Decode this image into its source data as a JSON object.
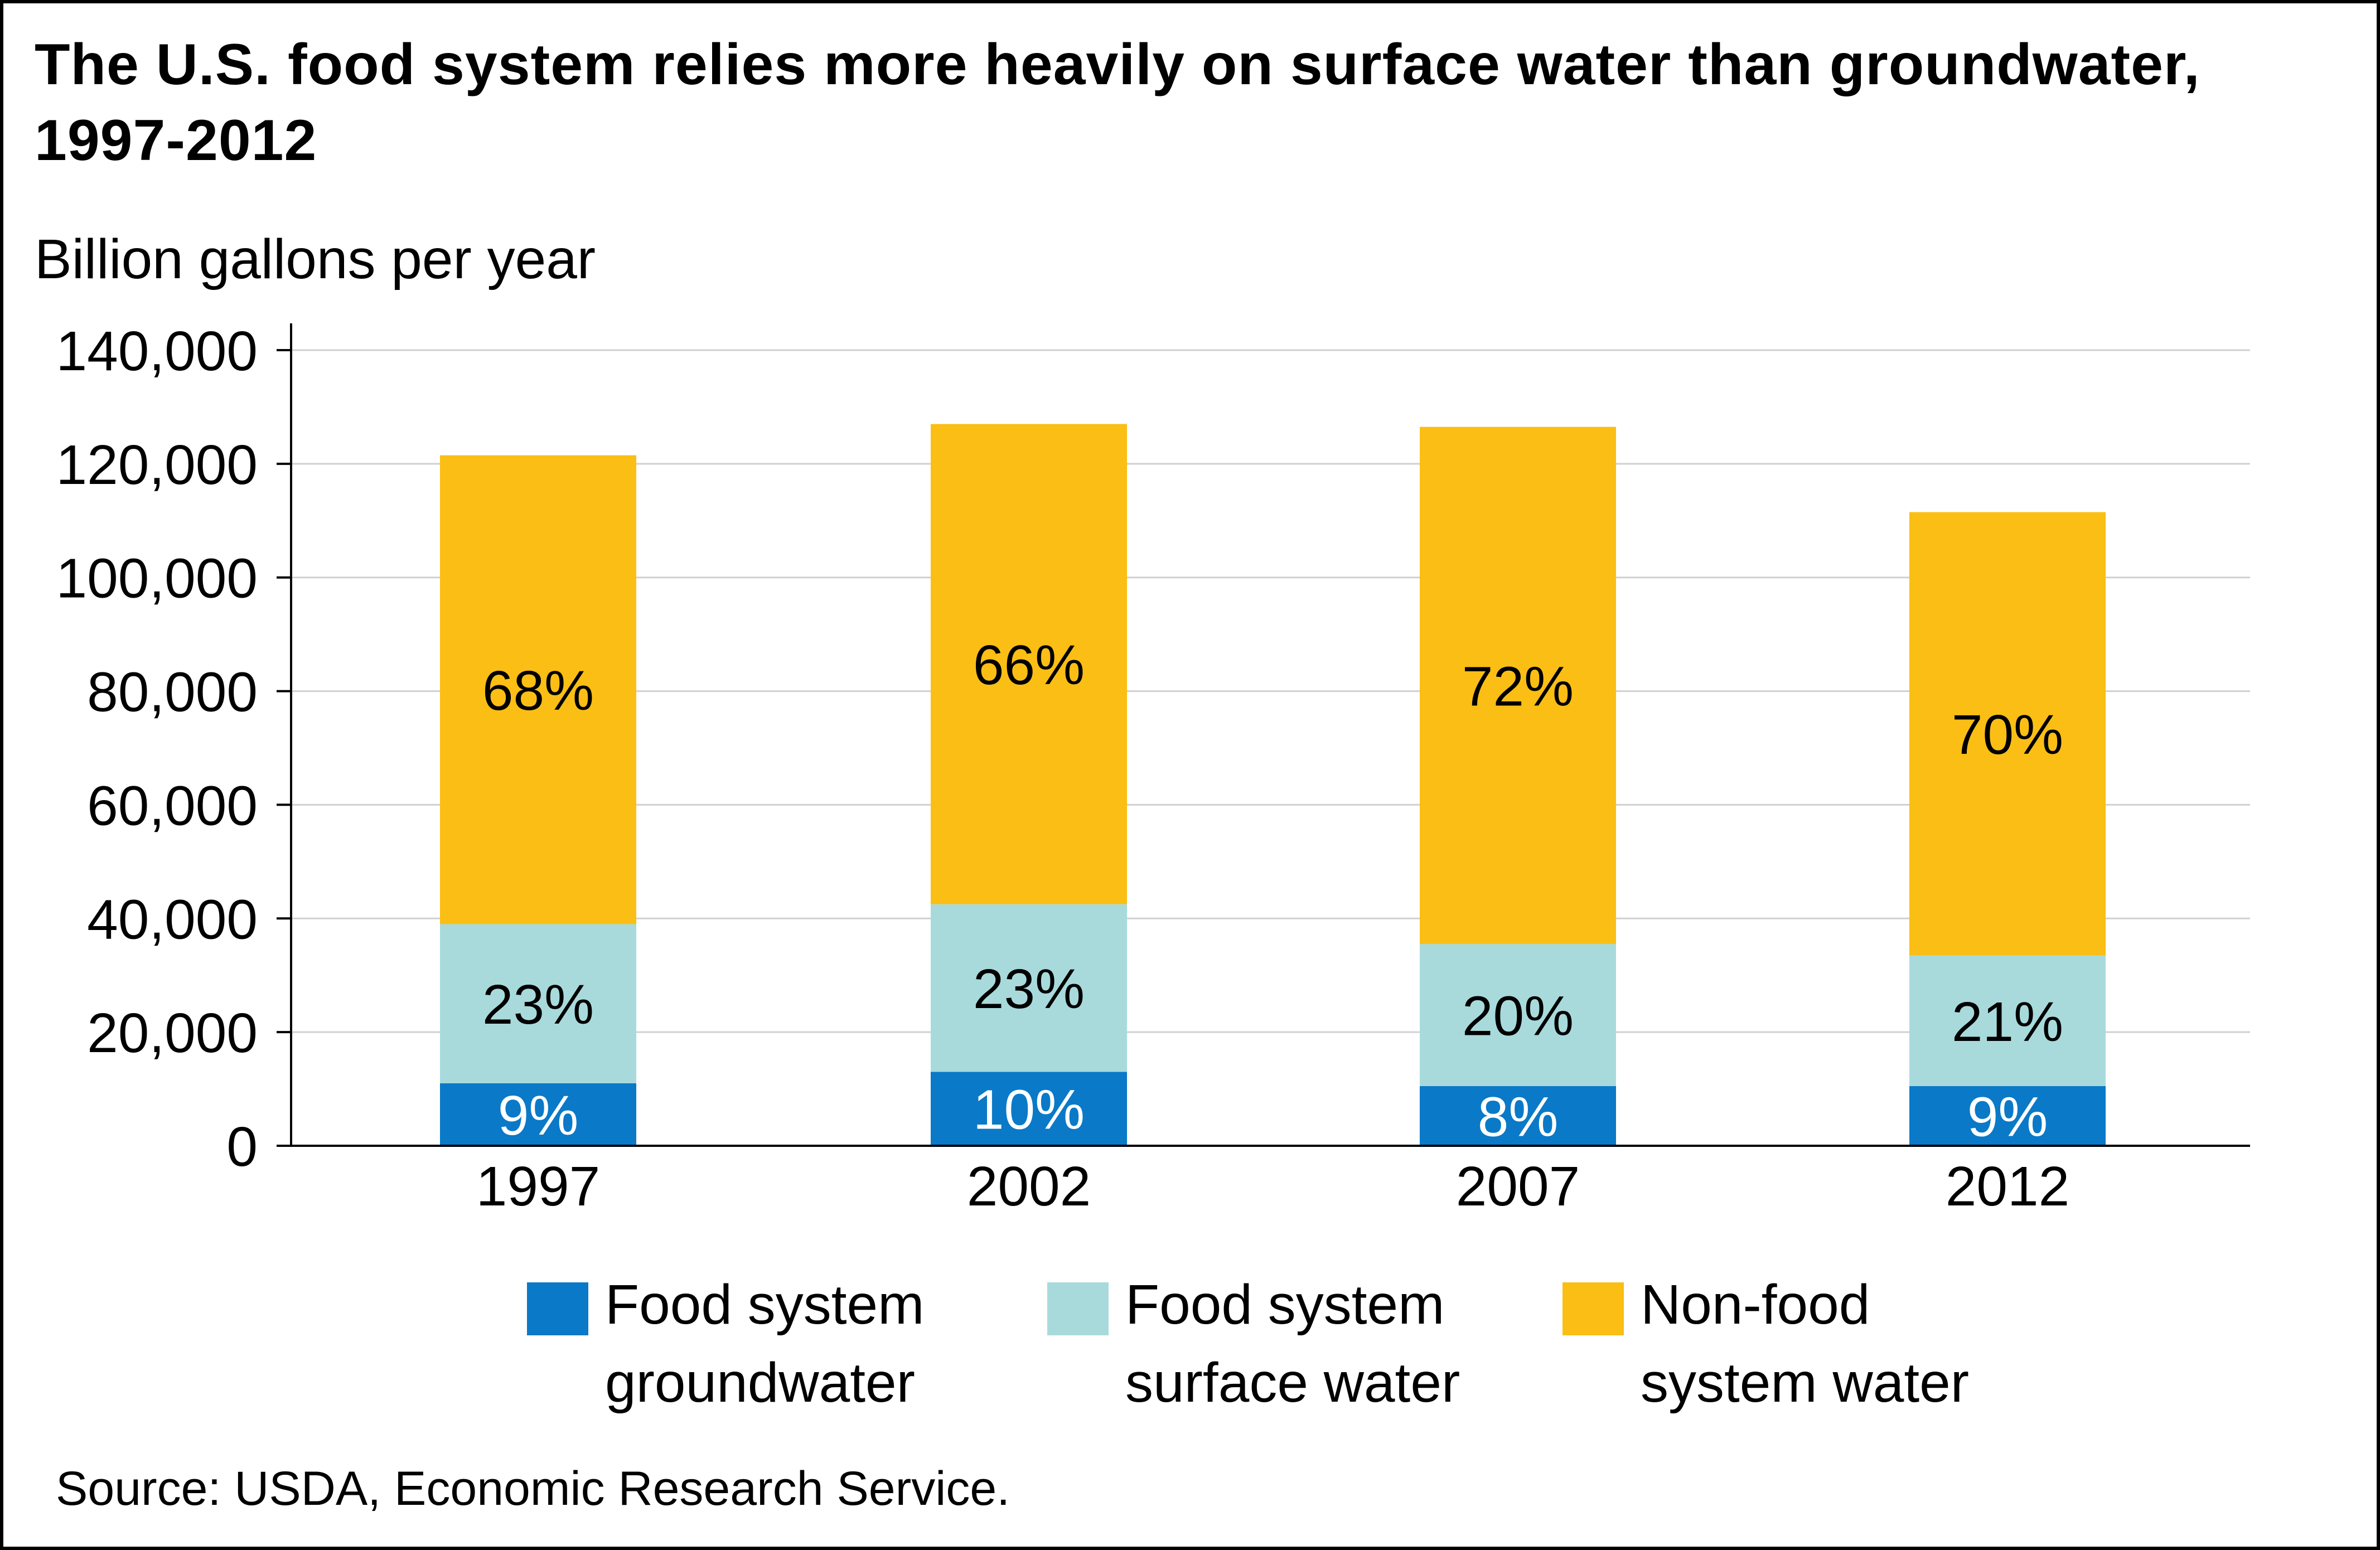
{
  "title": "The U.S. food system relies more heavily on surface water than groundwater, 1997-2012",
  "source": "Source: USDA, Economic Research Service.",
  "chart_data": {
    "type": "bar",
    "stacked": true,
    "title": "The U.S. food system relies more heavily on surface water than groundwater, 1997-2012",
    "ylabel": "Billion gallons per year",
    "xlabel": "",
    "categories": [
      "1997",
      "2002",
      "2007",
      "2012"
    ],
    "ylim": [
      0,
      140000
    ],
    "yticks": [
      0,
      20000,
      40000,
      60000,
      80000,
      100000,
      120000,
      140000
    ],
    "ytick_labels": [
      "0",
      "20,000",
      "40,000",
      "60,000",
      "80,000",
      "100,000",
      "120,000",
      "140,000"
    ],
    "grid": true,
    "legend_position": "bottom",
    "series": [
      {
        "name": "Food system groundwater",
        "color": "#0a79c8",
        "label_color": "#ffffff",
        "values": [
          11000,
          13000,
          10500,
          10500
        ],
        "labels": [
          "9%",
          "10%",
          "8%",
          "9%"
        ]
      },
      {
        "name": "Food system surface water",
        "color": "#a8dadc",
        "label_color": "#000000",
        "values": [
          28000,
          29500,
          25000,
          23000
        ],
        "labels": [
          "23%",
          "23%",
          "20%",
          "21%"
        ]
      },
      {
        "name": "Non-food system water",
        "color": "#fbbe14",
        "label_color": "#000000",
        "values": [
          82500,
          84500,
          91000,
          78000
        ],
        "labels": [
          "68%",
          "66%",
          "72%",
          "70%"
        ]
      }
    ]
  },
  "legend": [
    {
      "line1": "Food system",
      "line2": "groundwater",
      "color": "#0a79c8"
    },
    {
      "line1": "Food system",
      "line2": "surface water",
      "color": "#a8dadc"
    },
    {
      "line1": "Non-food",
      "line2": "system water",
      "color": "#fbbe14"
    }
  ]
}
